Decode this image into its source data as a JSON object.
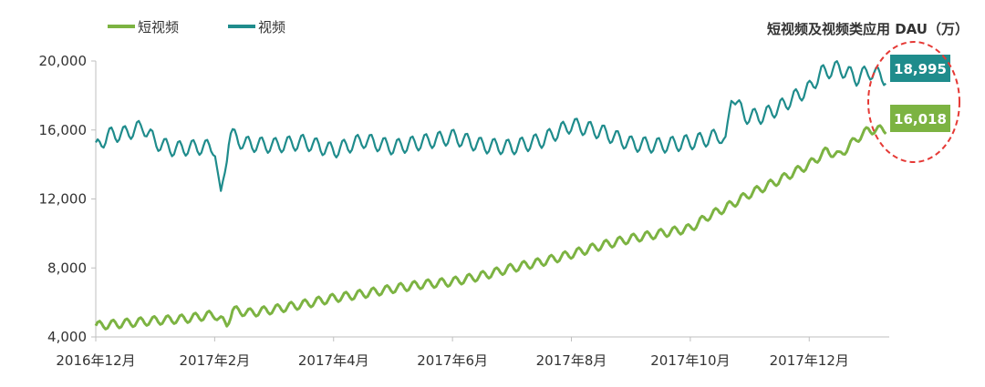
{
  "chart_data": {
    "type": "line",
    "unit_label": "短视频及视频类应用 DAU（万）",
    "y_ticks": [
      "4,000",
      "8,000",
      "12,000",
      "16,000",
      "20,000"
    ],
    "y_tick_values": [
      4000,
      8000,
      12000,
      16000,
      20000
    ],
    "ylim": [
      4000,
      20000
    ],
    "x_ticks": [
      "2016年12月",
      "2017年2月",
      "2017年4月",
      "2017年6月",
      "2017年8月",
      "2017年10月",
      "2017年12月"
    ],
    "x_tick_months": [
      0,
      2,
      4,
      6,
      8,
      10,
      12
    ],
    "x_range_months": [
      0,
      13.3
    ],
    "grid": false,
    "legend_position": "top-left",
    "series": [
      {
        "name": "短视频",
        "color": "#7cb342",
        "end_label": "16,018",
        "points": [
          [
            0,
            4650
          ],
          [
            0.5,
            4800
          ],
          [
            1,
            4950
          ],
          [
            1.5,
            5050
          ],
          [
            2,
            5300
          ],
          [
            2.2,
            4700
          ],
          [
            2.3,
            5550
          ],
          [
            2.6,
            5400
          ],
          [
            3,
            5600
          ],
          [
            3.5,
            5900
          ],
          [
            4,
            6250
          ],
          [
            4.5,
            6500
          ],
          [
            5,
            6800
          ],
          [
            5.5,
            7050
          ],
          [
            6,
            7200
          ],
          [
            6.5,
            7550
          ],
          [
            7,
            8000
          ],
          [
            7.5,
            8350
          ],
          [
            8,
            8800
          ],
          [
            8.5,
            9300
          ],
          [
            9,
            9700
          ],
          [
            9.5,
            10000
          ],
          [
            10,
            10300
          ],
          [
            10.3,
            11000
          ],
          [
            10.6,
            11500
          ],
          [
            11,
            12300
          ],
          [
            11.5,
            13100
          ],
          [
            12,
            14000
          ],
          [
            12.3,
            14800
          ],
          [
            12.5,
            14500
          ],
          [
            12.8,
            15500
          ],
          [
            13,
            16000
          ],
          [
            13.3,
            16018
          ]
        ],
        "weekly_amplitude": 250
      },
      {
        "name": "视频",
        "color": "#1f8c8c",
        "end_label": "18,995",
        "points": [
          [
            0,
            14900
          ],
          [
            0.2,
            15700
          ],
          [
            0.5,
            15800
          ],
          [
            0.8,
            16200
          ],
          [
            1,
            15300
          ],
          [
            1.3,
            14900
          ],
          [
            1.7,
            15000
          ],
          [
            2,
            15000
          ],
          [
            2.1,
            11900
          ],
          [
            2.25,
            15800
          ],
          [
            2.5,
            15200
          ],
          [
            3,
            15100
          ],
          [
            3.5,
            15300
          ],
          [
            4,
            14800
          ],
          [
            4.5,
            15400
          ],
          [
            5,
            15000
          ],
          [
            5.5,
            15300
          ],
          [
            6,
            15600
          ],
          [
            6.5,
            15100
          ],
          [
            7,
            15000
          ],
          [
            7.5,
            15400
          ],
          [
            8,
            16300
          ],
          [
            8.5,
            15900
          ],
          [
            9,
            15200
          ],
          [
            9.5,
            15100
          ],
          [
            10,
            15300
          ],
          [
            10.3,
            15500
          ],
          [
            10.5,
            15700
          ],
          [
            10.6,
            15200
          ],
          [
            10.7,
            18200
          ],
          [
            10.9,
            16800
          ],
          [
            11.2,
            16800
          ],
          [
            11.5,
            17300
          ],
          [
            11.8,
            18000
          ],
          [
            12,
            18400
          ],
          [
            12.2,
            19300
          ],
          [
            12.5,
            19600
          ],
          [
            12.8,
            19000
          ],
          [
            13,
            19400
          ],
          [
            13.3,
            18995
          ]
        ],
        "weekly_amplitude": 450
      }
    ]
  }
}
